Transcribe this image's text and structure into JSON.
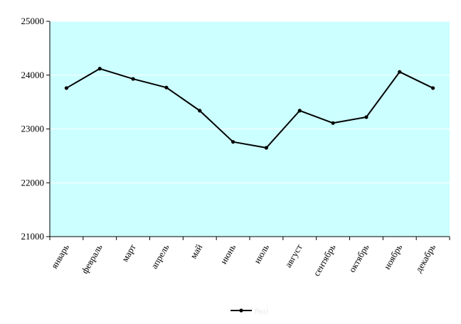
{
  "chart_data": {
    "type": "line",
    "categories": [
      "январь",
      "февраль",
      "март",
      "апрель",
      "май",
      "июнь",
      "июль",
      "август",
      "сентябрь",
      "октябрь",
      "ноябрь",
      "декабрь"
    ],
    "series": [
      {
        "name": "Ряд1",
        "color": "#000000",
        "values": [
          23760,
          24120,
          23930,
          23770,
          23340,
          22760,
          22650,
          23340,
          23110,
          23220,
          24060,
          23760
        ]
      }
    ],
    "ylim": [
      21000,
      25000
    ],
    "yticks": [
      "21000",
      "22000",
      "23000",
      "24000",
      "25000"
    ],
    "grid": true,
    "plot_background": "#CCFFFF",
    "legend": "bottom"
  }
}
